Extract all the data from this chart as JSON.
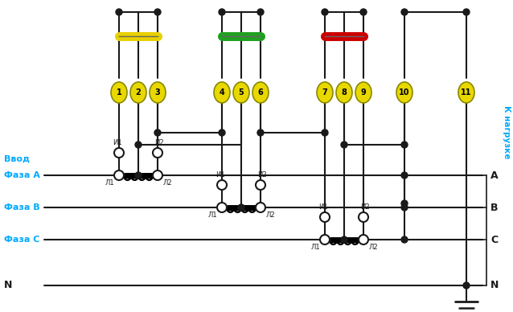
{
  "bg_color": "#ffffff",
  "line_color": "#1a1a1a",
  "fuse_yellow_color": "#e8d000",
  "fuse_green_color": "#20a020",
  "fuse_red_color": "#cc0000",
  "phase_label_color": "#00aaff",
  "black_label_color": "#1a1a1a",
  "terminal_fill": "#e8d800",
  "terminal_edge": "#888800",
  "vvod_label": "Ввод",
  "phase_labels": [
    "Фаза A",
    "Фаза B",
    "Фаза C",
    "N"
  ],
  "right_labels": [
    "A",
    "B",
    "C",
    "N"
  ],
  "k_nagruzke": "К нагрузке"
}
